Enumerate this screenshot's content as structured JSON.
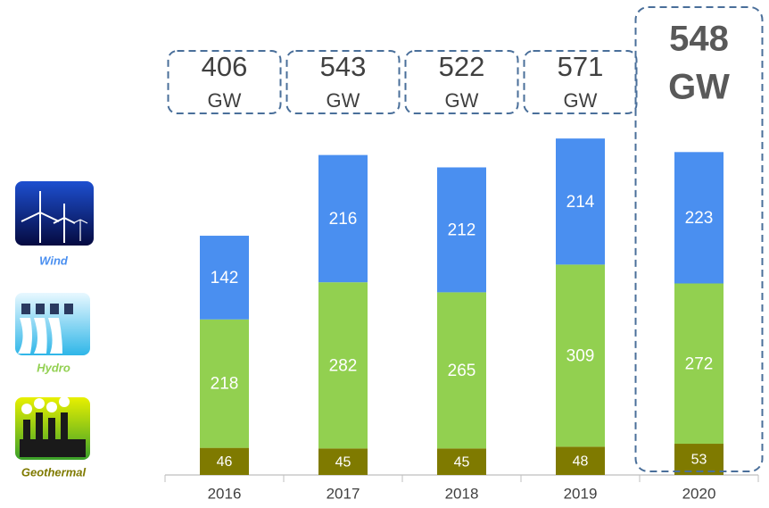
{
  "chart_data": {
    "type": "stacked-bar",
    "categories": [
      "2016",
      "2017",
      "2018",
      "2019",
      "2020"
    ],
    "series": [
      {
        "name": "Geothermal",
        "color": "#7f7a00",
        "values": [
          46,
          45,
          45,
          48,
          53
        ]
      },
      {
        "name": "Hydro",
        "color": "#92d050",
        "values": [
          218,
          282,
          265,
          309,
          272
        ]
      },
      {
        "name": "Wind",
        "color": "#4a8ff0",
        "values": [
          142,
          216,
          212,
          214,
          223
        ]
      }
    ],
    "totals": [
      406,
      543,
      522,
      571,
      548
    ],
    "total_unit": "GW"
  }
}
